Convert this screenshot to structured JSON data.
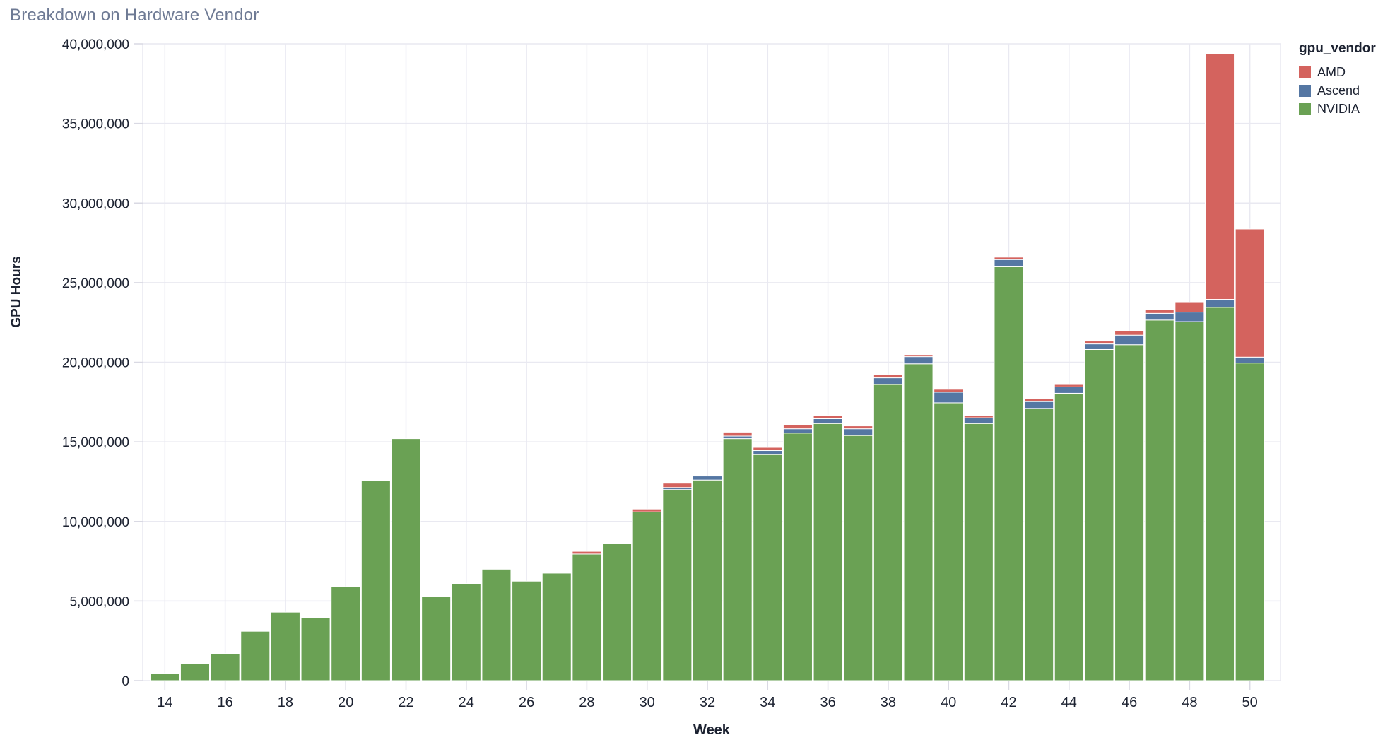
{
  "title": "Breakdown on Hardware Vendor",
  "colors": {
    "background": "#ffffff",
    "title_text": "#6e7a94",
    "axis_text": "#1c2231",
    "grid": "#e9e9f1",
    "tick_mark": "#d9d9e3",
    "bar_stroke": "#ffffff",
    "amd": "#d4635e",
    "ascend": "#5577a3",
    "nvidia": "#6aa154"
  },
  "chart_data": {
    "type": "bar",
    "stacked": true,
    "title": "Breakdown on Hardware Vendor",
    "xlabel": "Week",
    "ylabel": "GPU Hours",
    "x": [
      14,
      15,
      16,
      17,
      18,
      19,
      20,
      21,
      22,
      23,
      24,
      25,
      26,
      27,
      28,
      29,
      30,
      31,
      32,
      33,
      34,
      35,
      36,
      37,
      38,
      39,
      40,
      41,
      42,
      43,
      44,
      45,
      46,
      47,
      48,
      49,
      50
    ],
    "series": [
      {
        "name": "AMD",
        "color": "#d4635e",
        "values": [
          0,
          0,
          0,
          0,
          0,
          0,
          0,
          0,
          0,
          0,
          0,
          0,
          0,
          0,
          170000,
          0,
          180000,
          270000,
          0,
          250000,
          200000,
          250000,
          220000,
          180000,
          200000,
          130000,
          180000,
          150000,
          150000,
          170000,
          150000,
          180000,
          260000,
          220000,
          600000,
          15450000,
          8050000
        ]
      },
      {
        "name": "Ascend",
        "color": "#5577a3",
        "values": [
          0,
          0,
          0,
          0,
          0,
          0,
          0,
          0,
          0,
          0,
          0,
          0,
          0,
          0,
          0,
          0,
          0,
          130000,
          250000,
          160000,
          250000,
          270000,
          300000,
          420000,
          420000,
          450000,
          670000,
          360000,
          450000,
          430000,
          400000,
          350000,
          600000,
          420000,
          600000,
          500000,
          370000
        ]
      },
      {
        "name": "NVIDIA",
        "color": "#6aa154",
        "values": [
          450000,
          1070000,
          1700000,
          3100000,
          4300000,
          3950000,
          5900000,
          12550000,
          15200000,
          5300000,
          6100000,
          7000000,
          6250000,
          6750000,
          7950000,
          8600000,
          10600000,
          12000000,
          12600000,
          15200000,
          14200000,
          15550000,
          16150000,
          15400000,
          18600000,
          19900000,
          17450000,
          16150000,
          26000000,
          17100000,
          18050000,
          20800000,
          21100000,
          22650000,
          22550000,
          23450000,
          19950000
        ]
      }
    ],
    "stack_order_bottom_to_top": [
      "NVIDIA",
      "Ascend",
      "AMD"
    ],
    "ylim": [
      0,
      40000000
    ],
    "y_ticks": [
      0,
      5000000,
      10000000,
      15000000,
      20000000,
      25000000,
      30000000,
      35000000,
      40000000
    ],
    "y_tick_labels": [
      "0",
      "5,000,000",
      "10,000,000",
      "15,000,000",
      "20,000,000",
      "25,000,000",
      "30,000,000",
      "35,000,000",
      "40,000,000"
    ],
    "x_ticks": [
      14,
      16,
      18,
      20,
      22,
      24,
      26,
      28,
      30,
      32,
      34,
      36,
      38,
      40,
      42,
      44,
      46,
      48,
      50
    ],
    "x_tick_labels": [
      "14",
      "16",
      "18",
      "20",
      "22",
      "24",
      "26",
      "28",
      "30",
      "32",
      "34",
      "36",
      "38",
      "40",
      "42",
      "44",
      "46",
      "48",
      "50"
    ],
    "grid": true,
    "legend": {
      "title": "gpu_vendor",
      "position": "right",
      "items": [
        "AMD",
        "Ascend",
        "NVIDIA"
      ]
    }
  }
}
